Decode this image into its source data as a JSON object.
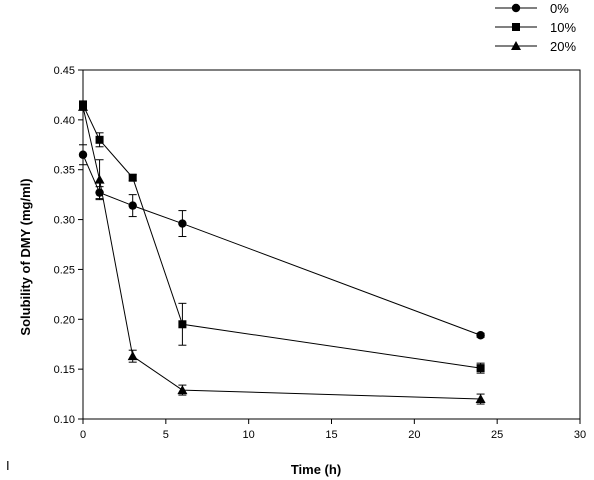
{
  "chart_data": {
    "type": "line",
    "xlabel": "Time (h)",
    "ylabel": "Solubility of DMY (mg/ml)",
    "xlim": [
      0,
      30
    ],
    "ylim": [
      0.1,
      0.45
    ],
    "xticks": [
      "0",
      "5",
      "10",
      "15",
      "20",
      "25",
      "30"
    ],
    "yticks": [
      "0.10",
      "0.15",
      "0.20",
      "0.25",
      "0.30",
      "0.35",
      "0.40",
      "0.45"
    ],
    "grid": false,
    "legend_position": "top-right",
    "series": [
      {
        "name": "0%",
        "marker": "circle",
        "points": [
          {
            "x": 0,
            "y": 0.365,
            "err": 0.01
          },
          {
            "x": 1,
            "y": 0.327,
            "err": 0.006
          },
          {
            "x": 3,
            "y": 0.314,
            "err": 0.011
          },
          {
            "x": 6,
            "y": 0.296,
            "err": 0.013
          },
          {
            "x": 24,
            "y": 0.184,
            "err": 0.002
          }
        ]
      },
      {
        "name": "10%",
        "marker": "square",
        "points": [
          {
            "x": 0,
            "y": 0.415,
            "err": 0.004
          },
          {
            "x": 1,
            "y": 0.38,
            "err": 0.007
          },
          {
            "x": 3,
            "y": 0.342,
            "err": 0.003
          },
          {
            "x": 6,
            "y": 0.195,
            "err": 0.021
          },
          {
            "x": 24,
            "y": 0.151,
            "err": 0.005
          }
        ]
      },
      {
        "name": "20%",
        "marker": "triangle",
        "points": [
          {
            "x": 0,
            "y": 0.413,
            "err": 0.003
          },
          {
            "x": 1,
            "y": 0.34,
            "err": 0.02
          },
          {
            "x": 3,
            "y": 0.163,
            "err": 0.006
          },
          {
            "x": 6,
            "y": 0.129,
            "err": 0.005
          },
          {
            "x": 24,
            "y": 0.12,
            "err": 0.005
          }
        ]
      }
    ]
  },
  "stray_mark": "I"
}
